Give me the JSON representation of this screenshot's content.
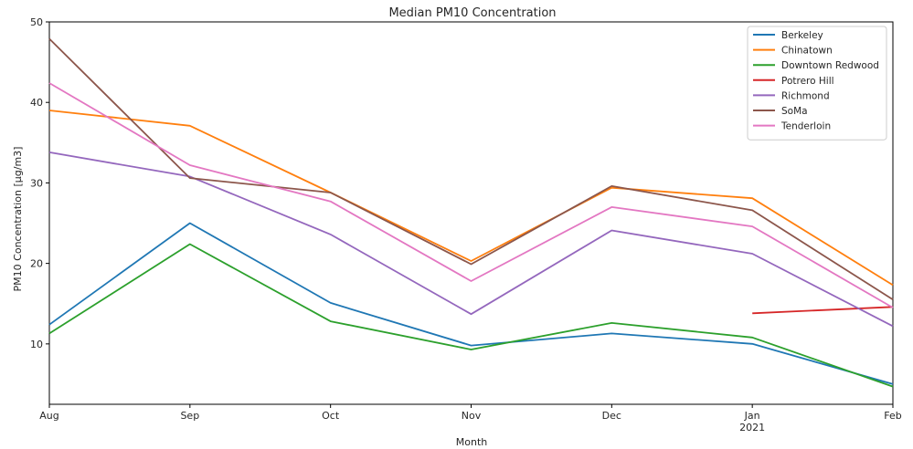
{
  "chart_data": {
    "type": "line",
    "title": "Median PM10 Concentration",
    "xlabel": "Month",
    "ylabel": "PM10 Concentration [µg/m3]",
    "categories": [
      "Aug",
      "Sep",
      "Oct",
      "Nov",
      "Dec",
      "Jan",
      "Feb"
    ],
    "x_year_label": "2021",
    "ylim": [
      2.5,
      50
    ],
    "yticks": [
      10,
      20,
      30,
      40,
      50
    ],
    "grid": false,
    "legend_position": "top-right",
    "series": [
      {
        "name": "Berkeley",
        "color": "#1f77b4",
        "values": [
          12.4,
          25.0,
          15.1,
          9.8,
          11.3,
          10.0,
          5.0
        ]
      },
      {
        "name": "Chinatown",
        "color": "#ff7f0e",
        "values": [
          39.0,
          37.1,
          28.8,
          20.3,
          29.4,
          28.1,
          17.3
        ]
      },
      {
        "name": "Downtown Redwood",
        "color": "#2ca02c",
        "values": [
          11.3,
          22.4,
          12.8,
          9.3,
          12.6,
          10.8,
          4.7
        ]
      },
      {
        "name": "Potrero Hill",
        "color": "#d62728",
        "values": [
          null,
          null,
          null,
          null,
          null,
          13.8,
          14.6
        ]
      },
      {
        "name": "Richmond",
        "color": "#9467bd",
        "values": [
          33.8,
          30.8,
          23.6,
          13.7,
          24.1,
          21.2,
          12.2
        ]
      },
      {
        "name": "SoMa",
        "color": "#8c564b",
        "values": [
          47.9,
          30.6,
          28.8,
          19.9,
          29.6,
          26.6,
          15.5
        ]
      },
      {
        "name": "Tenderloin",
        "color": "#e377c2",
        "values": [
          42.4,
          32.2,
          27.7,
          17.8,
          27.0,
          24.6,
          14.5
        ]
      }
    ]
  }
}
